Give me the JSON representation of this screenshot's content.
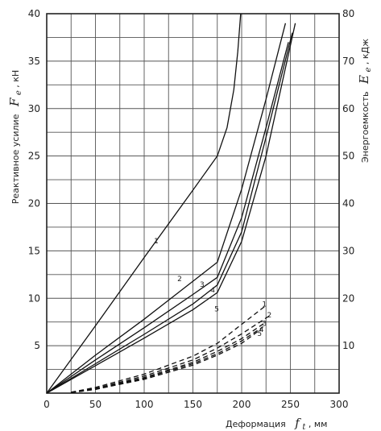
{
  "chart_data": {
    "type": "line",
    "xlabel": "Деформация",
    "xlabel_symbol": "f",
    "xlabel_subscript": "t",
    "xlabel_unit": ", мм",
    "ylabel_left": "Реактивное усилие",
    "ylabel_left_symbol": "F",
    "ylabel_left_subscript": "e",
    "ylabel_left_unit": ", кН",
    "ylabel_right": "Энергоемкость",
    "ylabel_right_symbol": "E",
    "ylabel_right_subscript": "e",
    "ylabel_right_unit": ", кДж",
    "xlim": [
      0,
      300
    ],
    "ylim_left": [
      0,
      40
    ],
    "ylim_right": [
      0,
      80
    ],
    "x_ticks": [
      0,
      50,
      100,
      150,
      200,
      250,
      300
    ],
    "y_left_ticks": [
      5,
      10,
      15,
      20,
      25,
      30,
      35,
      40
    ],
    "y_right_ticks": [
      10,
      20,
      30,
      40,
      50,
      60,
      70,
      80
    ],
    "grid": true,
    "force_series": [
      {
        "name": "1",
        "axis": "left",
        "style": "solid",
        "x": [
          0,
          50,
          100,
          150,
          175,
          185,
          192,
          196,
          199
        ],
        "y": [
          0,
          7.1,
          14.3,
          21.4,
          25,
          28,
          32,
          36,
          40
        ]
      },
      {
        "name": "2",
        "axis": "left",
        "style": "solid",
        "x": [
          0,
          50,
          100,
          150,
          175,
          200,
          225,
          245
        ],
        "y": [
          0,
          4,
          7.8,
          11.8,
          13.8,
          21.5,
          31,
          39
        ]
      },
      {
        "name": "3",
        "axis": "left",
        "style": "solid",
        "x": [
          0,
          50,
          100,
          150,
          175,
          200,
          225,
          248
        ],
        "y": [
          0,
          3.5,
          6.9,
          10.4,
          12.2,
          18.5,
          28,
          37
        ]
      },
      {
        "name": "4",
        "axis": "left",
        "style": "solid",
        "x": [
          0,
          50,
          100,
          150,
          175,
          200,
          225,
          252
        ],
        "y": [
          0,
          3.1,
          6.2,
          9.4,
          11.4,
          17,
          27,
          38
        ]
      },
      {
        "name": "5",
        "axis": "left",
        "style": "solid",
        "x": [
          0,
          50,
          100,
          150,
          175,
          200,
          225,
          255
        ],
        "y": [
          0,
          2.9,
          5.8,
          8.8,
          10.6,
          16,
          25,
          39
        ]
      }
    ],
    "energy_series": [
      {
        "name": "1",
        "axis": "right",
        "style": "dashed",
        "x": [
          25,
          50,
          100,
          150,
          175,
          200,
          225
        ],
        "y": [
          0.2,
          1.2,
          4,
          7.8,
          10.5,
          14.5,
          18.5
        ]
      },
      {
        "name": "2",
        "axis": "right",
        "style": "dashed",
        "x": [
          25,
          50,
          100,
          150,
          175,
          200,
          230
        ],
        "y": [
          0.15,
          1,
          3.6,
          7,
          9.5,
          12.5,
          16.5
        ]
      },
      {
        "name": "3",
        "axis": "right",
        "style": "dashed",
        "x": [
          25,
          50,
          100,
          150,
          175,
          200,
          225
        ],
        "y": [
          0.1,
          0.9,
          3.3,
          6.5,
          8.8,
          11.5,
          15
        ]
      },
      {
        "name": "4",
        "axis": "right",
        "style": "dashed",
        "x": [
          25,
          50,
          100,
          150,
          175,
          200,
          222
        ],
        "y": [
          0.1,
          0.8,
          3.1,
          6.2,
          8.3,
          11,
          14
        ]
      },
      {
        "name": "5",
        "axis": "right",
        "style": "dashed",
        "x": [
          25,
          50,
          100,
          150,
          175,
          200,
          220
        ],
        "y": [
          0.1,
          0.8,
          2.9,
          5.9,
          8,
          10.5,
          13.5
        ]
      }
    ]
  }
}
